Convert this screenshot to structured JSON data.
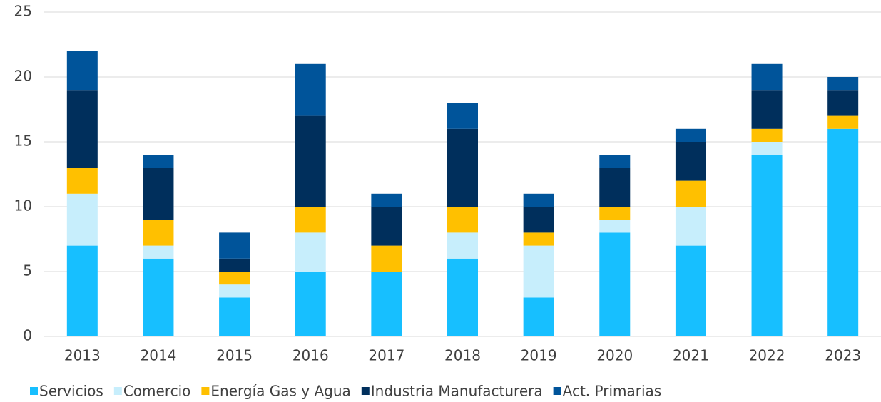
{
  "chart_data": {
    "type": "stacked_bar",
    "categories": [
      "2013",
      "2014",
      "2015",
      "2016",
      "2017",
      "2018",
      "2019",
      "2020",
      "2021",
      "2022",
      "2023"
    ],
    "series": [
      {
        "name": "Servicios",
        "color": "#17bfff",
        "values": [
          7,
          6,
          3,
          5,
          5,
          6,
          3,
          8,
          7,
          14,
          16
        ]
      },
      {
        "name": "Comercio",
        "color": "#c7eefc",
        "values": [
          4,
          1,
          1,
          3,
          0,
          2,
          4,
          1,
          3,
          1,
          0
        ]
      },
      {
        "name": "Energía Gas y Agua",
        "color": "#ffc000",
        "values": [
          2,
          2,
          1,
          2,
          2,
          2,
          1,
          1,
          2,
          1,
          1
        ]
      },
      {
        "name": "Industria Manufacturera",
        "color": "#002f5c",
        "values": [
          6,
          4,
          1,
          7,
          3,
          6,
          2,
          3,
          3,
          3,
          2
        ]
      },
      {
        "name": "Act. Primarias",
        "color": "#00549a",
        "values": [
          3,
          1,
          2,
          4,
          1,
          2,
          1,
          1,
          1,
          2,
          1
        ]
      }
    ],
    "ylim": [
      0,
      25
    ],
    "yticks": [
      0,
      5,
      10,
      15,
      20,
      25
    ],
    "grid": true,
    "legend": "bottom"
  }
}
